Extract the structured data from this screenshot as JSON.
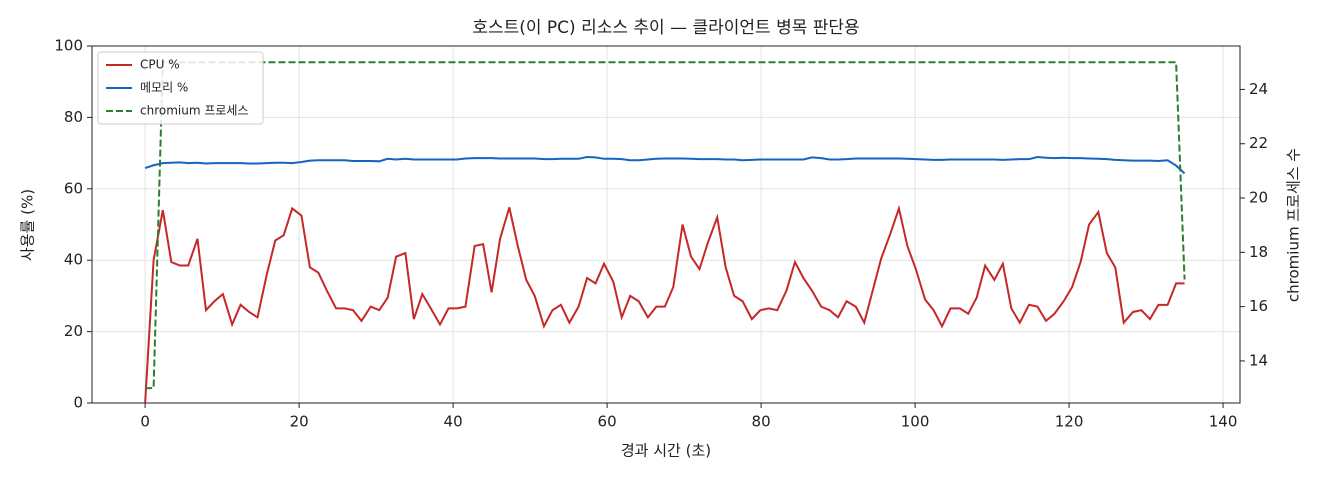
{
  "chart_data": {
    "type": "line",
    "title": "호스트(이 PC) 리소스 추이 — 클라이언트 병목 판단용",
    "xlabel": "경과 시간 (초)",
    "ylabel": "사용률 (%)",
    "y2label": "chromium 프로세스 수",
    "x": [
      0,
      1.1,
      2.3,
      3.4,
      4.5,
      5.6,
      6.8,
      7.9,
      9,
      10.1,
      11.3,
      12.4,
      13.5,
      14.6,
      15.8,
      16.9,
      18,
      19.1,
      20.3,
      21.4,
      22.5,
      23.6,
      24.8,
      25.9,
      27,
      28.1,
      29.3,
      30.4,
      31.5,
      32.6,
      33.8,
      34.9,
      36,
      37.1,
      38.3,
      39.4,
      40.5,
      41.6,
      42.8,
      43.9,
      45,
      46.1,
      47.3,
      48.4,
      49.5,
      50.6,
      51.8,
      52.9,
      54,
      55.1,
      56.3,
      57.4,
      58.5,
      59.6,
      60.8,
      61.9,
      63,
      64.1,
      65.3,
      66.4,
      67.5,
      68.6,
      69.8,
      70.9,
      72,
      73.1,
      74.3,
      75.4,
      76.5,
      77.6,
      78.8,
      79.9,
      81,
      82.1,
      83.3,
      84.4,
      85.5,
      86.6,
      87.8,
      88.9,
      90,
      91.1,
      92.3,
      93.4,
      94.5,
      95.6,
      96.8,
      97.9,
      99,
      100.1,
      101.3,
      102.4,
      103.5,
      104.6,
      105.8,
      106.9,
      108,
      109.1,
      110.3,
      111.4,
      112.5,
      113.6,
      114.8,
      115.9,
      117,
      118.1,
      119.3,
      120.4,
      121.5,
      122.6,
      123.8,
      124.9,
      126,
      127.1,
      128.3,
      129.4,
      130.5,
      131.6,
      132.8,
      133.9,
      135
    ],
    "series": [
      {
        "name": "CPU %",
        "color": "#c62828",
        "linestyle": "solid",
        "values": [
          0,
          40,
          54,
          39.5,
          38.5,
          38.5,
          46,
          26,
          28.5,
          30.5,
          22,
          27.5,
          25.5,
          24,
          36,
          45.5,
          47,
          54.5,
          52.5,
          38,
          36.5,
          31.5,
          26.5,
          26.5,
          26,
          23,
          27,
          26,
          29.5,
          41,
          42,
          23.5,
          30.5,
          26.5,
          22,
          26.5,
          26.5,
          27,
          44,
          44.5,
          31,
          46,
          54.8,
          44,
          34.5,
          30,
          21.5,
          26,
          27.5,
          22.5,
          27,
          35,
          33.5,
          39,
          34,
          24,
          30,
          28.5,
          24,
          27,
          27,
          32.5,
          50,
          41,
          37.5,
          45,
          52,
          38,
          30,
          28.5,
          23.5,
          26,
          26.5,
          26,
          31.5,
          39.5,
          35,
          31.5,
          27,
          26,
          24,
          28.5,
          27,
          22.5,
          31.5,
          40.5,
          47.5,
          54.5,
          44,
          37.5,
          29,
          26,
          21.5,
          26.5,
          26.5,
          25,
          29.5,
          38.5,
          34.5,
          39,
          26.5,
          22.5,
          27.5,
          27,
          23,
          25,
          28.5,
          32.5,
          39.5,
          50,
          53.5,
          42,
          38,
          22.5,
          25.5,
          26,
          23.5,
          27.5,
          27.5,
          33.5,
          33.5
        ]
      },
      {
        "name": "메모리 %",
        "color": "#1565c0",
        "linestyle": "solid",
        "values": [
          65.8,
          66.6,
          67.2,
          67.3,
          67.4,
          67.2,
          67.3,
          67.1,
          67.2,
          67.2,
          67.2,
          67.2,
          67.1,
          67.1,
          67.2,
          67.3,
          67.3,
          67.2,
          67.5,
          67.9,
          68.0,
          68.0,
          68.0,
          68.0,
          67.8,
          67.8,
          67.8,
          67.7,
          68.4,
          68.2,
          68.4,
          68.2,
          68.2,
          68.2,
          68.2,
          68.2,
          68.2,
          68.5,
          68.6,
          68.6,
          68.6,
          68.5,
          68.5,
          68.5,
          68.5,
          68.5,
          68.3,
          68.3,
          68.4,
          68.4,
          68.4,
          68.9,
          68.8,
          68.4,
          68.4,
          68.3,
          68.0,
          68.0,
          68.2,
          68.4,
          68.5,
          68.5,
          68.5,
          68.4,
          68.3,
          68.3,
          68.3,
          68.2,
          68.2,
          68.0,
          68.1,
          68.2,
          68.2,
          68.2,
          68.2,
          68.2,
          68.2,
          68.8,
          68.6,
          68.2,
          68.2,
          68.3,
          68.5,
          68.5,
          68.5,
          68.5,
          68.5,
          68.5,
          68.4,
          68.3,
          68.2,
          68.1,
          68.1,
          68.2,
          68.2,
          68.2,
          68.2,
          68.2,
          68.2,
          68.1,
          68.2,
          68.3,
          68.3,
          68.9,
          68.7,
          68.6,
          68.7,
          68.6,
          68.6,
          68.5,
          68.4,
          68.3,
          68.1,
          68.0,
          67.9,
          67.9,
          67.9,
          67.8,
          68.0,
          66.5,
          64.3
        ]
      },
      {
        "name": "chromium 프로세스",
        "color": "#2e7d32",
        "linestyle": "dashed",
        "axis": "y2",
        "values": [
          13,
          13,
          25,
          25,
          25,
          25,
          25,
          25,
          25,
          25,
          25,
          25,
          25,
          25,
          25,
          25,
          25,
          25,
          25,
          25,
          25,
          25,
          25,
          25,
          25,
          25,
          25,
          25,
          25,
          25,
          25,
          25,
          25,
          25,
          25,
          25,
          25,
          25,
          25,
          25,
          25,
          25,
          25,
          25,
          25,
          25,
          25,
          25,
          25,
          25,
          25,
          25,
          25,
          25,
          25,
          25,
          25,
          25,
          25,
          25,
          25,
          25,
          25,
          25,
          25,
          25,
          25,
          25,
          25,
          25,
          25,
          25,
          25,
          25,
          25,
          25,
          25,
          25,
          25,
          25,
          25,
          25,
          25,
          25,
          25,
          25,
          25,
          25,
          25,
          25,
          25,
          25,
          25,
          25,
          25,
          25,
          25,
          25,
          25,
          25,
          25,
          25,
          25,
          25,
          25,
          25,
          25,
          25,
          25,
          25,
          25,
          25,
          25,
          25,
          25,
          25,
          25,
          25,
          25,
          25,
          17
        ]
      }
    ],
    "xlim": [
      -6.9,
      142.2
    ],
    "xticks": [
      0,
      20,
      40,
      60,
      80,
      100,
      120,
      140
    ],
    "ylim": [
      0,
      100
    ],
    "yticks": [
      0,
      20,
      40,
      60,
      80,
      100
    ],
    "y2lim": [
      12.45,
      25.6
    ],
    "y2ticks": [
      14,
      16,
      18,
      20,
      22,
      24
    ],
    "grid": true,
    "legend": "upper-left"
  }
}
